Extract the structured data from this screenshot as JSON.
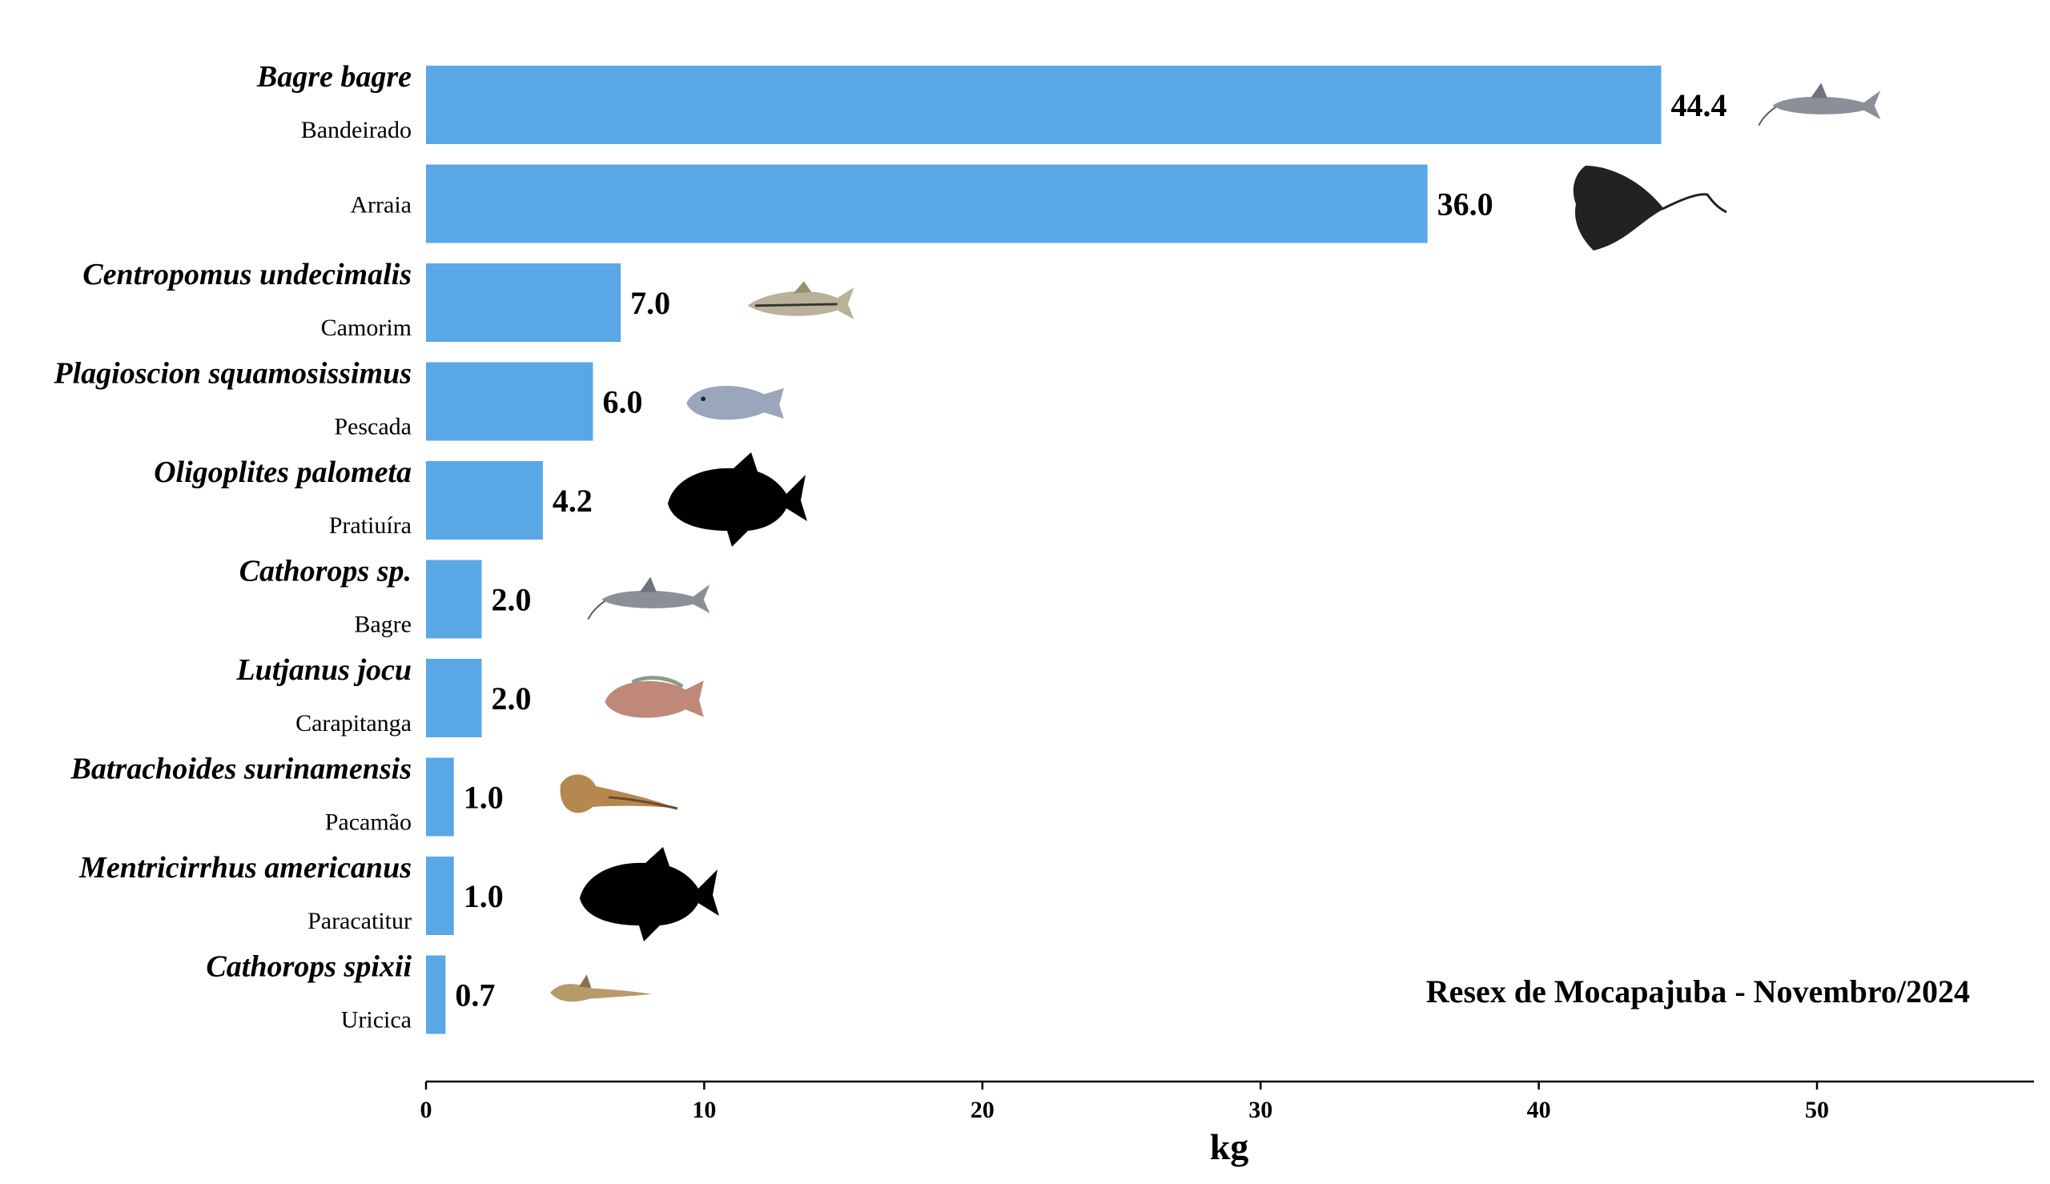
{
  "chart_data": {
    "type": "bar",
    "orientation": "horizontal",
    "title": "",
    "xlabel": "kg",
    "ylabel": "",
    "xlim": [
      0,
      57.8
    ],
    "xticks": [
      0,
      10,
      20,
      30,
      40,
      50
    ],
    "grid": false,
    "annotation": "Resex de Mocapajuba - Novembro/2024",
    "colors": {
      "bar": "#5aa7e6",
      "axis": "#000000"
    },
    "categories": [
      {
        "scientific": "Bagre bagre",
        "common": "Bandeirado",
        "value": 44.4,
        "label": "44.4",
        "icon": "catfish-icon"
      },
      {
        "scientific": "",
        "common": "Arraia",
        "value": 36.0,
        "label": "36.0",
        "icon": "stingray-icon"
      },
      {
        "scientific": "Centropomus undecimalis",
        "common": "Camorim",
        "value": 7.0,
        "label": "7.0",
        "icon": "snook-icon"
      },
      {
        "scientific": "Plagioscion squamosissimus",
        "common": "Pescada",
        "value": 6.0,
        "label": "6.0",
        "icon": "croaker-icon"
      },
      {
        "scientific": "Oligoplites palometa",
        "common": "Pratiuíra",
        "value": 4.2,
        "label": "4.2",
        "icon": "fish-silhouette-icon"
      },
      {
        "scientific": "Cathorops sp.",
        "common": "Bagre",
        "value": 2.0,
        "label": "2.0",
        "icon": "catfish-icon"
      },
      {
        "scientific": "Lutjanus jocu",
        "common": "Carapitanga",
        "value": 2.0,
        "label": "2.0",
        "icon": "snapper-icon"
      },
      {
        "scientific": "Batrachoides surinamensis",
        "common": "Pacamão",
        "value": 1.0,
        "label": "1.0",
        "icon": "toadfish-icon"
      },
      {
        "scientific": "Mentricirrhus americanus",
        "common": "Paracatitur",
        "value": 1.0,
        "label": "1.0",
        "icon": "fish-silhouette-icon"
      },
      {
        "scientific": "Cathorops spixii",
        "common": "Uricica",
        "value": 0.7,
        "label": "0.7",
        "icon": "small-catfish-icon"
      }
    ]
  }
}
